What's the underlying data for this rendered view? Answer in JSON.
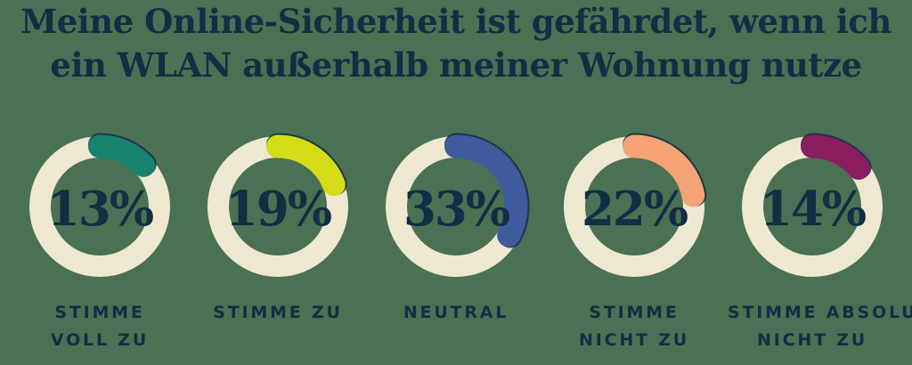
{
  "title": "Meine Online-Sicherheit ist gefährdet, wenn ich\nein WLAN außerhalb meiner Wohnung nutze",
  "colors": {
    "background": "#4a7153",
    "text_navy": "#132d44",
    "ring_cream": "#eee8d1",
    "arc_edge": "#1b2f45"
  },
  "chart_data": {
    "type": "pie",
    "subtype": "donut-multiples",
    "title": "Meine Online-Sicherheit ist gefährdet, wenn ich ein WLAN außerhalb meiner Wohnung nutze",
    "unit": "%",
    "categories": [
      "Stimme voll zu",
      "Stimme zu",
      "Neutral",
      "Stimme nicht zu",
      "Stimme absolut nicht zu"
    ],
    "values": [
      13,
      19,
      33,
      22,
      14
    ],
    "arc_start": "12-o'clock, clockwise",
    "arc_colors": [
      "#15836e",
      "#d3dc17",
      "#3e5b9d",
      "#f3a376",
      "#8b1d61"
    ]
  },
  "donuts": [
    {
      "pct": 13,
      "value_label": "13%",
      "label": "STIMME\nVOLL ZU",
      "arc_color": "#15836e"
    },
    {
      "pct": 19,
      "value_label": "19%",
      "label": "STIMME ZU",
      "arc_color": "#d3dc17"
    },
    {
      "pct": 33,
      "value_label": "33%",
      "label": "NEUTRAL",
      "arc_color": "#3e5b9d"
    },
    {
      "pct": 22,
      "value_label": "22%",
      "label": "STIMME\nNICHT ZU",
      "arc_color": "#f3a376"
    },
    {
      "pct": 14,
      "value_label": "14%",
      "label": "STIMME ABSOLUT\nNICHT ZU",
      "arc_color": "#8b1d61"
    }
  ]
}
